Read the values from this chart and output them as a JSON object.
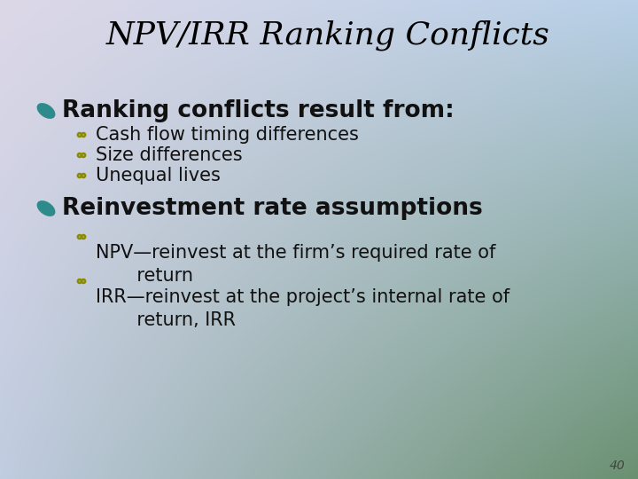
{
  "title": "NPV/IRR Ranking Conflicts",
  "title_fontsize": 26,
  "title_style": "italic",
  "title_font": "serif",
  "title_color": "#000000",
  "bullet1": "Ranking conflicts result from:",
  "bullet1_fontsize": 19,
  "sub_bullets1": [
    "Cash flow timing differences",
    "Size differences",
    "Unequal lives"
  ],
  "sub_bullet_fontsize": 15,
  "bullet2": "Reinvestment rate assumptions",
  "bullet2_fontsize": 19,
  "sub_bullets2": [
    "NPV—reinvest at the firm’s required rate of\n       return",
    "IRR—reinvest at the project’s internal rate of\n       return, IRR"
  ],
  "sub_bullet2_fontsize": 15,
  "main_bullet_color": "#2e8b8b",
  "sub_bullet_color": "#8b8b00",
  "text_color": "#111111",
  "page_number": "40",
  "bg_colors": {
    "top_left": "#ddd8e8",
    "top_right": "#b8d0e8",
    "bottom_left": "#c0cce0",
    "bottom_right": "#6a9070"
  }
}
